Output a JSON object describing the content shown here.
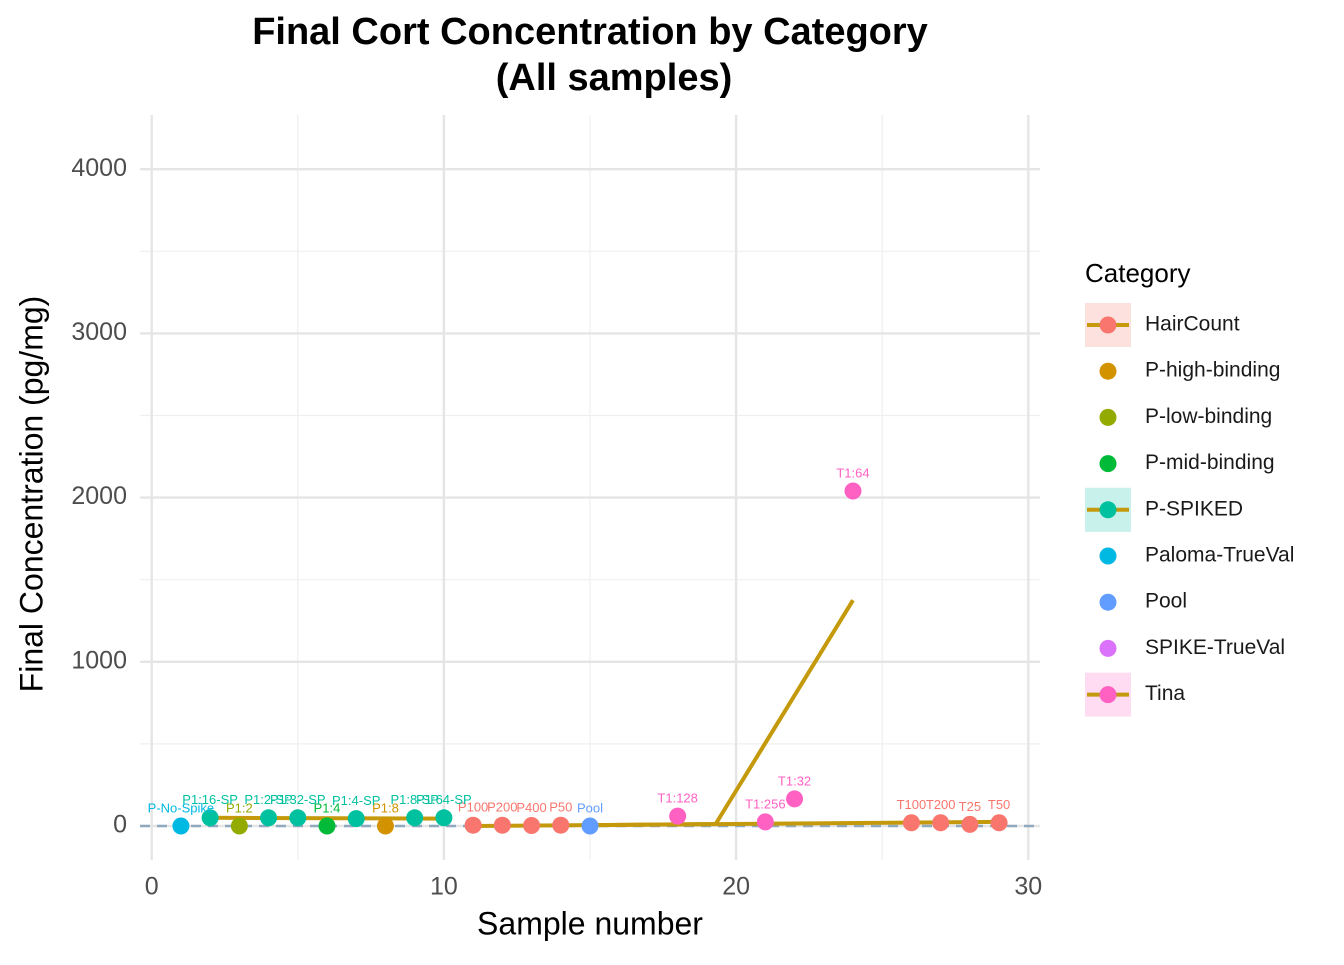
{
  "chart_data": {
    "type": "scatter",
    "title": "Final Cort Concentration by Category",
    "subtitle": "(All samples)",
    "x_label": "Sample number",
    "y_label": "Final Concentration (pg/mg)",
    "legend_title": "Category",
    "legend_position": "right",
    "xlim": [
      -0.4,
      30.4
    ],
    "ylim": [
      -207,
      4330
    ],
    "xticks": [
      0,
      10,
      20,
      30
    ],
    "yticks": [
      0,
      1000,
      2000,
      3000,
      4000
    ],
    "x_minor_ticks": [
      5,
      15,
      25
    ],
    "y_minor_ticks": [
      500,
      1500,
      2500,
      3500
    ],
    "grid": true,
    "hline": 0,
    "fit_color": "#c49a0c",
    "series": [
      {
        "name": "HairCount",
        "color": "#f8766d",
        "x": [
          11,
          12,
          13,
          14,
          26,
          27,
          28,
          29
        ],
        "values": [
          5,
          5,
          3,
          5,
          20,
          20,
          10,
          20
        ],
        "labels": [
          "P100",
          "P200",
          "P400",
          "P50",
          "T100",
          "T200",
          "T25",
          "T50"
        ],
        "fit": {
          "x": [
            11,
            29
          ],
          "values": [
            0,
            25
          ]
        }
      },
      {
        "name": "P-high-binding",
        "color": "#d39200",
        "x": [
          8
        ],
        "values": [
          0
        ],
        "labels": [
          "P1:8"
        ]
      },
      {
        "name": "P-low-binding",
        "color": "#93aa00",
        "x": [
          3
        ],
        "values": [
          0
        ],
        "labels": [
          "P1:2"
        ]
      },
      {
        "name": "P-mid-binding",
        "color": "#00ba38",
        "x": [
          6
        ],
        "values": [
          0
        ],
        "labels": [
          "P1:4"
        ]
      },
      {
        "name": "P-SPIKED",
        "color": "#00c19f",
        "x": [
          2,
          4,
          5,
          7,
          9,
          10
        ],
        "values": [
          50,
          50,
          50,
          45,
          50,
          50
        ],
        "labels": [
          "P1:16-SP",
          "P1:2-SP",
          "P1:32-SP",
          "P1:4-SP",
          "P1:8-SP",
          "P1:64-SP"
        ],
        "fit": {
          "x": [
            2,
            10
          ],
          "values": [
            50,
            45
          ]
        }
      },
      {
        "name": "Paloma-TrueVal",
        "color": "#00b9e3",
        "x": [
          1
        ],
        "values": [
          0
        ],
        "labels": [
          "P-No-Spike"
        ]
      },
      {
        "name": "Pool",
        "color": "#619cff",
        "x": [
          15
        ],
        "values": [
          0
        ],
        "labels": [
          "Pool"
        ]
      },
      {
        "name": "SPIKE-TrueVal",
        "color": "#db72fb",
        "x": [],
        "values": [],
        "labels": []
      },
      {
        "name": "Tina",
        "color": "#ff61c3",
        "x": [
          18,
          21,
          22,
          24
        ],
        "values": [
          60,
          25,
          165,
          2040
        ],
        "labels": [
          "T1:128",
          "T1:256",
          "T1:32",
          "T1:64"
        ],
        "fit": {
          "x": [
            15,
            19.3,
            24
          ],
          "values": [
            5,
            12,
            1375
          ]
        }
      }
    ]
  }
}
